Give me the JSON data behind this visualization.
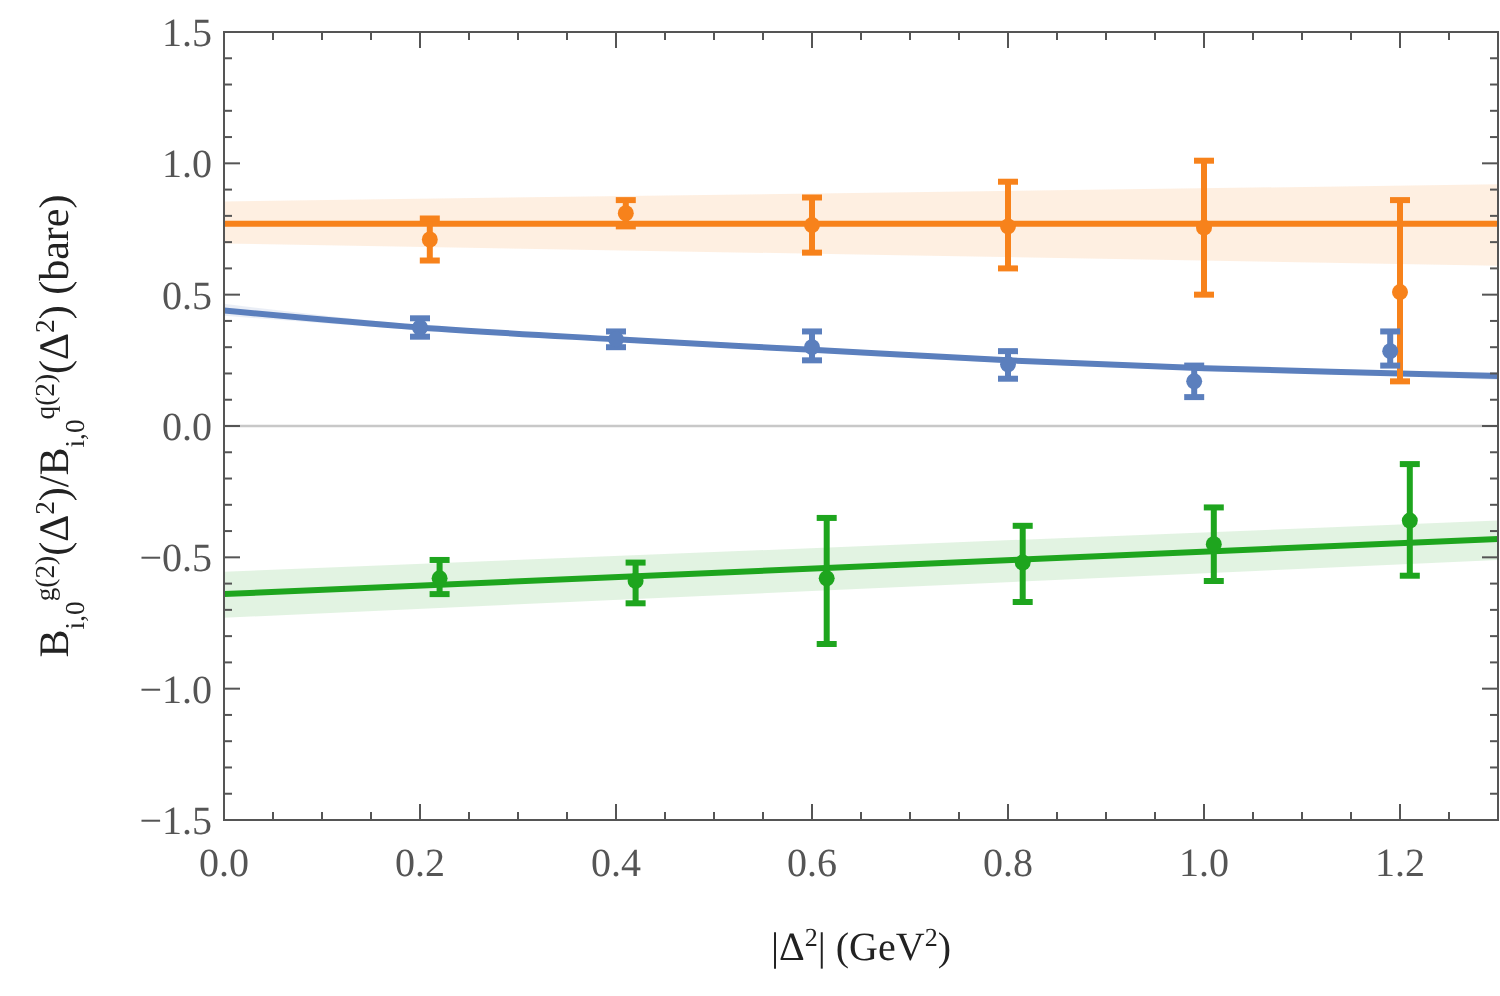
{
  "chart_data": {
    "type": "scatter",
    "xlabel": "|Δ$^{2}$|  (GeV$^{2}$)",
    "ylabel": "B$_{i,0}$$^{g(2)}$(Δ$^{2}$)/B$_{i,0}$$^{q(2)}$(Δ$^{2}$) (bare)",
    "xlim": [
      0,
      1.3
    ],
    "ylim": [
      -1.5,
      1.5
    ],
    "xticks": [
      {
        "value": 0,
        "label": "0.0"
      },
      {
        "value": 0.05,
        "label": null
      },
      {
        "value": 0.1,
        "label": null
      },
      {
        "value": 0.15,
        "label": null
      },
      {
        "value": 0.2,
        "label": "0.2"
      },
      {
        "value": 0.25,
        "label": null
      },
      {
        "value": 0.3,
        "label": null
      },
      {
        "value": 0.35,
        "label": null
      },
      {
        "value": 0.4,
        "label": "0.4"
      },
      {
        "value": 0.45,
        "label": null
      },
      {
        "value": 0.5,
        "label": null
      },
      {
        "value": 0.55,
        "label": null
      },
      {
        "value": 0.6,
        "label": "0.6"
      },
      {
        "value": 0.65,
        "label": null
      },
      {
        "value": 0.7,
        "label": null
      },
      {
        "value": 0.75,
        "label": null
      },
      {
        "value": 0.8,
        "label": "0.8"
      },
      {
        "value": 0.85,
        "label": null
      },
      {
        "value": 0.9,
        "label": null
      },
      {
        "value": 0.95,
        "label": null
      },
      {
        "value": 1.0,
        "label": "1.0"
      },
      {
        "value": 1.05,
        "label": null
      },
      {
        "value": 1.1,
        "label": null
      },
      {
        "value": 1.15,
        "label": null
      },
      {
        "value": 1.2,
        "label": "1.2"
      },
      {
        "value": 1.25,
        "label": null
      }
    ],
    "yticks": [
      {
        "value": -1.5,
        "label": "−1.5"
      },
      {
        "value": -1.4,
        "label": null
      },
      {
        "value": -1.3,
        "label": null
      },
      {
        "value": -1.2,
        "label": null
      },
      {
        "value": -1.1,
        "label": null
      },
      {
        "value": -1.0,
        "label": "−1.0"
      },
      {
        "value": -0.9,
        "label": null
      },
      {
        "value": -0.8,
        "label": null
      },
      {
        "value": -0.7,
        "label": null
      },
      {
        "value": -0.6,
        "label": null
      },
      {
        "value": -0.5,
        "label": "−0.5"
      },
      {
        "value": -0.4,
        "label": null
      },
      {
        "value": -0.3,
        "label": null
      },
      {
        "value": -0.2,
        "label": null
      },
      {
        "value": -0.1,
        "label": null
      },
      {
        "value": 0,
        "label": "0.0"
      },
      {
        "value": 0.1,
        "label": null
      },
      {
        "value": 0.2,
        "label": null
      },
      {
        "value": 0.3,
        "label": null
      },
      {
        "value": 0.4,
        "label": null
      },
      {
        "value": 0.5,
        "label": "0.5"
      },
      {
        "value": 0.6,
        "label": null
      },
      {
        "value": 0.7,
        "label": null
      },
      {
        "value": 0.8,
        "label": null
      },
      {
        "value": 0.9,
        "label": null
      },
      {
        "value": 1.0,
        "label": "1.0"
      },
      {
        "value": 1.1,
        "label": null
      },
      {
        "value": 1.2,
        "label": null
      },
      {
        "value": 1.3,
        "label": null
      },
      {
        "value": 1.4,
        "label": null
      },
      {
        "value": 1.5,
        "label": "1.5"
      }
    ],
    "grid": false,
    "marker": "circle",
    "ref_lines": [
      {
        "axis": "y",
        "value": 0,
        "color": "#c8c8c8"
      }
    ],
    "series": [
      {
        "type": "line",
        "marker": "none",
        "color": "#f7821b",
        "x": [
          0,
          1.3
        ],
        "values": [
          0.77,
          0.77
        ],
        "lower": [
          0.695,
          0.61
        ],
        "upper": [
          0.855,
          0.92
        ]
      },
      {
        "type": "line",
        "marker": "none",
        "color": "#5b7fbd",
        "x": [
          0,
          0.2,
          0.4,
          0.6,
          0.8,
          1.0,
          1.2,
          1.3
        ],
        "values": [
          0.44,
          0.375,
          0.33,
          0.29,
          0.25,
          0.22,
          0.2,
          0.19
        ],
        "lower": [
          0.42,
          0.365,
          0.32,
          0.28,
          0.24,
          0.21,
          0.19,
          0.175
        ],
        "upper": [
          0.465,
          0.385,
          0.34,
          0.3,
          0.26,
          0.23,
          0.21,
          0.205
        ]
      },
      {
        "type": "line",
        "marker": "none",
        "color": "#1ea51e",
        "x": [
          0,
          1.3
        ],
        "values": [
          -0.64,
          -0.43
        ],
        "lower": [
          -0.73,
          -0.51
        ],
        "upper": [
          -0.555,
          -0.36
        ]
      },
      {
        "color": "#f7821b",
        "x": [
          0.21,
          0.41,
          0.6,
          0.8,
          1.0,
          1.2
        ],
        "values": [
          0.71,
          0.81,
          0.765,
          0.76,
          0.755,
          0.51
        ],
        "errors": [
          [
            0.63,
            0.79
          ],
          [
            0.76,
            0.86
          ],
          [
            0.66,
            0.87
          ],
          [
            0.6,
            0.93
          ],
          [
            0.5,
            1.01
          ],
          [
            0.17,
            0.86
          ]
        ]
      },
      {
        "color": "#5b7fbd",
        "x": [
          0.2,
          0.4,
          0.6,
          0.8,
          0.99,
          1.19
        ],
        "values": [
          0.375,
          0.33,
          0.3,
          0.235,
          0.17,
          0.285
        ],
        "errors": [
          [
            0.34,
            0.41
          ],
          [
            0.3,
            0.36
          ],
          [
            0.25,
            0.36
          ],
          [
            0.18,
            0.285
          ],
          [
            0.11,
            0.23
          ],
          [
            0.23,
            0.36
          ]
        ]
      },
      {
        "color": "#1ea51e",
        "x": [
          0.22,
          0.42,
          0.615,
          0.815,
          1.01,
          1.21
        ],
        "values": [
          -0.58,
          -0.59,
          -0.58,
          -0.52,
          -0.45,
          -0.36
        ],
        "errors": [
          [
            -0.64,
            -0.51
          ],
          [
            -0.675,
            -0.52
          ],
          [
            -0.83,
            -0.35
          ],
          [
            -0.67,
            -0.38
          ],
          [
            -0.59,
            -0.31
          ],
          [
            -0.57,
            -0.145
          ]
        ]
      }
    ]
  }
}
